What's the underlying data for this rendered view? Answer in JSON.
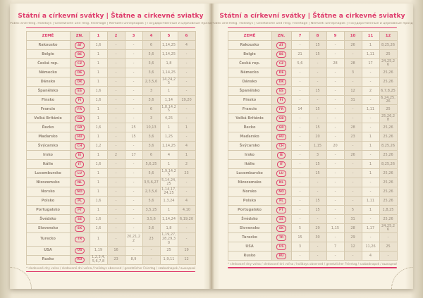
{
  "page": {
    "title": "Státní a církevní svátky | Štátne a cirkevné sviatky",
    "subtitle": "Public and Relig. Holidays | Gesetzliche und relig. Feiertage | Nemzeti ünnepnapok | Государственные и церковные праздники",
    "footnote": "* sledované dny volna / sledované dni voľna / holidays observed / gesetzlicher Feiertag / szabadnapok / выходной день"
  },
  "table": {
    "country_header": "ZEMĚ",
    "code_header": "ZN.",
    "left_month_headers": [
      "1",
      "2",
      "3",
      "4",
      "5",
      "6"
    ],
    "right_month_headers": [
      "7",
      "8",
      "9",
      "10",
      "11",
      "12"
    ],
    "empty_cell": "-",
    "accent_color": "#de3a6b",
    "countries": [
      {
        "name": "Rakousko",
        "code": "AT",
        "months": [
          "1,6",
          "-",
          "-",
          "6",
          "1,14,25",
          "4",
          "-",
          "15",
          "-",
          "26",
          "1",
          "8,25,26"
        ]
      },
      {
        "name": "Belgie",
        "code": "BE",
        "months": [
          "1",
          "-",
          "-",
          "5,6",
          "1,14,25",
          "-",
          "21",
          "15",
          "-",
          "-",
          "1,11",
          "25"
        ]
      },
      {
        "name": "Česká rep.",
        "code": "CZ",
        "months": [
          "1",
          "-",
          "-",
          "3,6",
          "1,8",
          "-",
          "5,6",
          "-",
          "28",
          "28",
          "17",
          "24,25,26"
        ]
      },
      {
        "name": "Německo",
        "code": "DE",
        "months": [
          "1",
          "-",
          "-",
          "3,6",
          "1,14,25",
          "-",
          "-",
          "-",
          "-",
          "3",
          "-",
          "25,26"
        ]
      },
      {
        "name": "Dánsko",
        "code": "DK",
        "months": [
          "1",
          "-",
          "-",
          "2,3,5,6",
          "14,24,25",
          "-",
          "-",
          "-",
          "-",
          "-",
          "-",
          "25,26"
        ]
      },
      {
        "name": "Španělsko",
        "code": "ES",
        "months": [
          "1,6",
          "-",
          "-",
          "3",
          "1",
          "-",
          "-",
          "15",
          "-",
          "12",
          "2",
          "6,7,8,25"
        ]
      },
      {
        "name": "Finsko",
        "code": "FI",
        "months": [
          "1,6",
          "-",
          "-",
          "3,6",
          "1,14",
          "19,20",
          "-",
          "-",
          "-",
          "31",
          "-",
          "6,24,25,26"
        ]
      },
      {
        "name": "Francie",
        "code": "FR",
        "months": [
          "1",
          "-",
          "-",
          "6",
          "1,8,14,25",
          "-",
          "14",
          "15",
          "-",
          "-",
          "1,11",
          "25"
        ]
      },
      {
        "name": "Velká Británie",
        "code": "GB",
        "months": [
          "1",
          "-",
          "-",
          "3",
          "4,25",
          "-",
          "-",
          "-",
          "-",
          "-",
          "-",
          "25,26,28"
        ]
      },
      {
        "name": "Řecko",
        "code": "GR",
        "months": [
          "1,6",
          "-",
          "25",
          "10,13",
          "1",
          "1",
          "-",
          "15",
          "-",
          "28",
          "-",
          "25,26"
        ]
      },
      {
        "name": "Maďarsko",
        "code": "HU",
        "months": [
          "1",
          "-",
          "15",
          "3,6",
          "1,25",
          "-",
          "-",
          "20",
          "-",
          "23",
          "1",
          "25,26"
        ]
      },
      {
        "name": "Švýcarsko",
        "code": "CH",
        "months": [
          "1,2",
          "-",
          "-",
          "3,6",
          "1,14,25",
          "4",
          "-",
          "1,15",
          "20",
          "-",
          "1",
          "8,25,26"
        ]
      },
      {
        "name": "Irsko",
        "code": "IE",
        "months": [
          "1",
          "2",
          "17",
          "6",
          "4",
          "1",
          "-",
          "3",
          "-",
          "26",
          "-",
          "25,26"
        ]
      },
      {
        "name": "Itálie",
        "code": "IT",
        "months": [
          "1,6",
          "-",
          "-",
          "5,6,25",
          "1",
          "2",
          "-",
          "15",
          "-",
          "-",
          "1",
          "8,25,26"
        ]
      },
      {
        "name": "Lucembursko",
        "code": "LU",
        "months": [
          "1",
          "-",
          "-",
          "5,6",
          "1,9,14,25",
          "23",
          "-",
          "15",
          "-",
          "-",
          "1",
          "25,26"
        ]
      },
      {
        "name": "Nizozemsko",
        "code": "NL",
        "months": [
          "1",
          "-",
          "-",
          "3,5,6,27",
          "5,14,24,25",
          "-",
          "-",
          "-",
          "-",
          "-",
          "-",
          "25,26"
        ]
      },
      {
        "name": "Norsko",
        "code": "NO",
        "months": [
          "1",
          "-",
          "-",
          "2,3,5,6",
          "1,14,17,24,25",
          "-",
          "-",
          "-",
          "-",
          "-",
          "-",
          "25,26"
        ]
      },
      {
        "name": "Polsko",
        "code": "PL",
        "months": [
          "1,6",
          "-",
          "-",
          "5,6",
          "1,3,24",
          "4",
          "-",
          "15",
          "-",
          "-",
          "1,11",
          "25,26"
        ]
      },
      {
        "name": "Portugalsko",
        "code": "PT",
        "months": [
          "1",
          "-",
          "-",
          "3,5,25",
          "1",
          "4,10",
          "-",
          "15",
          "-",
          "5",
          "1",
          "1,8,25"
        ]
      },
      {
        "name": "Švédsko",
        "code": "SE",
        "months": [
          "1,6",
          "-",
          "-",
          "3,5,6",
          "1,14,24",
          "6,19,20",
          "-",
          "-",
          "-",
          "31",
          "-",
          "25,26"
        ]
      },
      {
        "name": "Slovensko",
        "code": "SK",
        "months": [
          "1,6",
          "-",
          "-",
          "3,6",
          "1,8",
          "-",
          "5",
          "29",
          "1,15",
          "28",
          "1,17",
          "24,25,26"
        ]
      },
      {
        "name": "Turecko",
        "code": "TR",
        "months": [
          "1",
          "-",
          "20,21,22",
          "23",
          "1,19,27,28,29,30",
          "-",
          "15",
          "30",
          "-",
          "29",
          "-",
          "-"
        ]
      },
      {
        "name": "USA",
        "code": "US",
        "months": [
          "1,19",
          "16",
          "-",
          "-",
          "25",
          "19",
          "3",
          "-",
          "7",
          "12",
          "11,26",
          "25"
        ]
      },
      {
        "name": "Rusko",
        "code": "RU",
        "months": [
          "1,2,3,4,5,6,7,8",
          "23",
          "8,9",
          "-",
          "1,9,11",
          "12",
          "-",
          "-",
          "-",
          "-",
          "4",
          "-"
        ]
      }
    ]
  }
}
